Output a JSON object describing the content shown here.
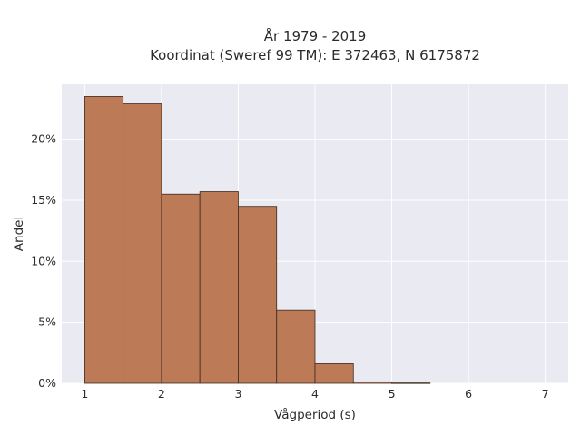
{
  "chart_data": {
    "type": "bar",
    "title_line1": "År 1979 - 2019",
    "title_line2": "Koordinat (Sweref 99 TM): E 372463, N 6175872",
    "xlabel": "Vågperiod (s)",
    "ylabel": "Andel",
    "xlim": [
      0.7,
      7.3
    ],
    "ylim": [
      0,
      0.245
    ],
    "x_ticks": [
      1,
      2,
      3,
      4,
      5,
      6,
      7
    ],
    "x_tick_labels": [
      "1",
      "2",
      "3",
      "4",
      "5",
      "6",
      "7"
    ],
    "y_ticks": [
      0,
      0.05,
      0.1,
      0.15,
      0.2
    ],
    "y_tick_labels": [
      "0%",
      "5%",
      "10%",
      "15%",
      "20%"
    ],
    "bins": [
      {
        "x0": 1.0,
        "x1": 1.5,
        "value": 0.235
      },
      {
        "x0": 1.5,
        "x1": 2.0,
        "value": 0.229
      },
      {
        "x0": 2.0,
        "x1": 2.5,
        "value": 0.155
      },
      {
        "x0": 2.5,
        "x1": 3.0,
        "value": 0.157
      },
      {
        "x0": 3.0,
        "x1": 3.5,
        "value": 0.145
      },
      {
        "x0": 3.5,
        "x1": 4.0,
        "value": 0.06
      },
      {
        "x0": 4.0,
        "x1": 4.5,
        "value": 0.016
      },
      {
        "x0": 4.5,
        "x1": 5.0,
        "value": 0.0012
      },
      {
        "x0": 5.0,
        "x1": 5.5,
        "value": 0.0003
      }
    ],
    "grid": true,
    "colors": {
      "bar_fill": "#bc7b56",
      "bar_edge": "#3d2a1e",
      "plot_bg": "#eaeaf2",
      "grid": "#ffffff"
    }
  }
}
